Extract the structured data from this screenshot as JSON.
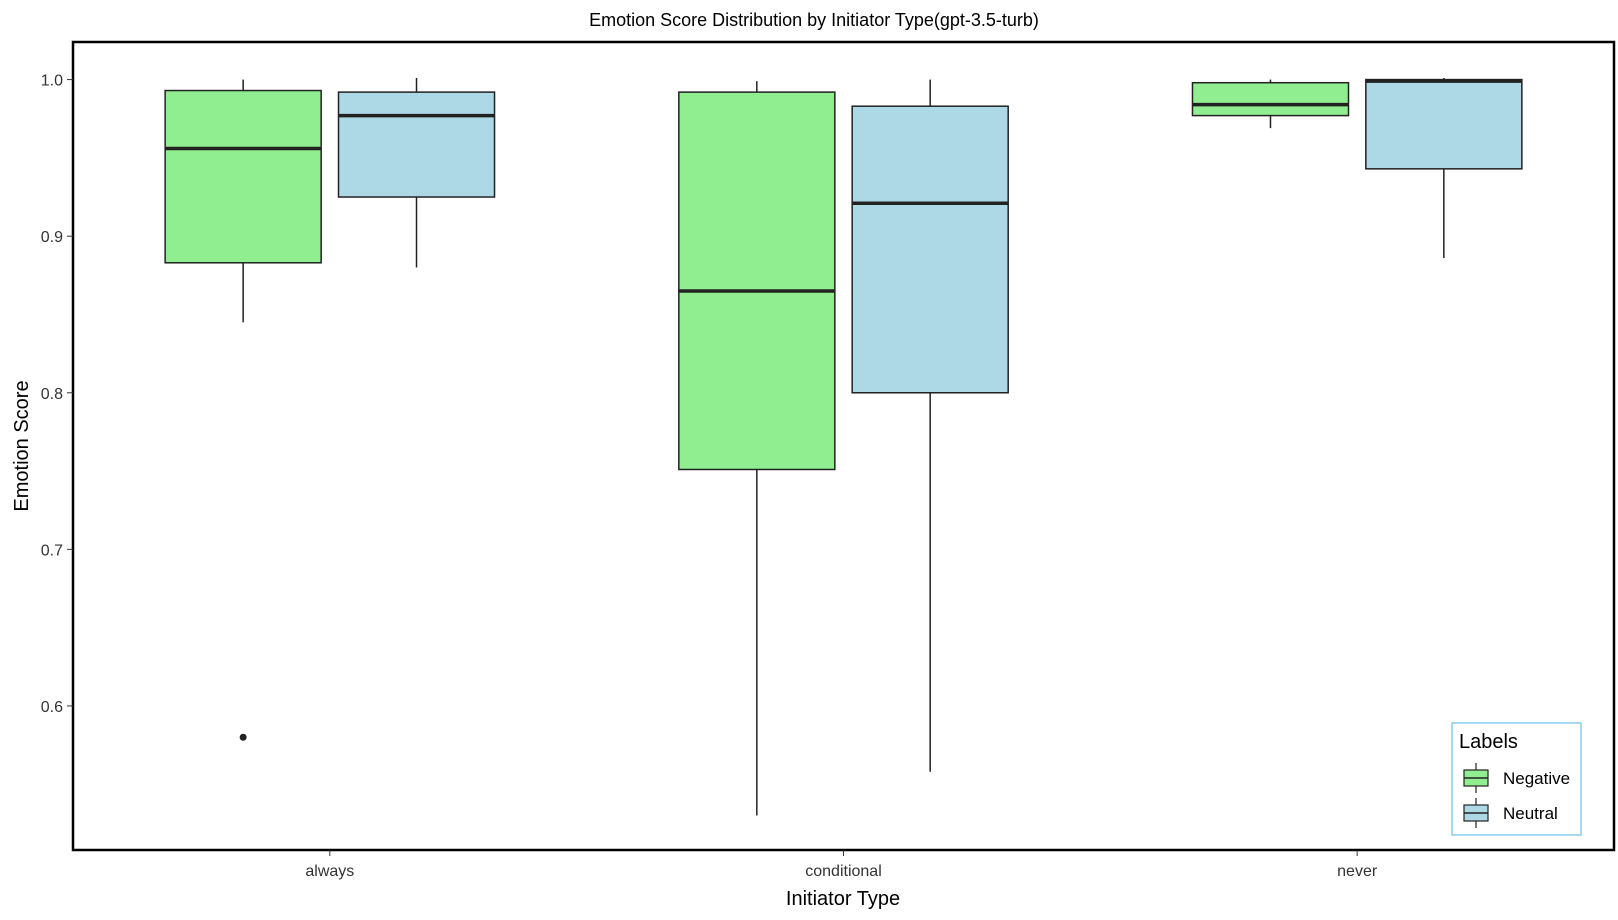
{
  "chart_data": {
    "type": "boxplot",
    "title": "Emotion Score Distribution by Initiator Type(gpt-3.5-turb)",
    "xlabel": "Initiator Type",
    "ylabel": "Emotion Score",
    "categories": [
      "always",
      "conditional",
      "never"
    ],
    "ylim": [
      0.508,
      1.024
    ],
    "yticks": [
      {
        "value": 0.6,
        "label": "0.6"
      },
      {
        "value": 0.7,
        "label": "0.7"
      },
      {
        "value": 0.8,
        "label": "0.8"
      },
      {
        "value": 0.9,
        "label": "0.9"
      },
      {
        "value": 1.0,
        "label": "1.0"
      }
    ],
    "grid": false,
    "legend": {
      "title": "Labels",
      "position": "bottom-right"
    },
    "series": [
      {
        "name": "Negative",
        "color": "#90ee90",
        "boxes": [
          {
            "category": "always",
            "whisker_low": 0.845,
            "q1": 0.883,
            "median": 0.956,
            "q3": 0.993,
            "whisker_high": 1.0,
            "outliers": [
              0.58
            ]
          },
          {
            "category": "conditional",
            "whisker_low": 0.53,
            "q1": 0.751,
            "median": 0.865,
            "q3": 0.992,
            "whisker_high": 0.999,
            "outliers": []
          },
          {
            "category": "never",
            "whisker_low": 0.969,
            "q1": 0.977,
            "median": 0.984,
            "q3": 0.998,
            "whisker_high": 1.0,
            "outliers": []
          }
        ]
      },
      {
        "name": "Neutral",
        "color": "#add8e6",
        "boxes": [
          {
            "category": "always",
            "whisker_low": 0.88,
            "q1": 0.925,
            "median": 0.977,
            "q3": 0.992,
            "whisker_high": 1.001,
            "outliers": []
          },
          {
            "category": "conditional",
            "whisker_low": 0.558,
            "q1": 0.8,
            "median": 0.921,
            "q3": 0.983,
            "whisker_high": 1.0,
            "outliers": []
          },
          {
            "category": "never",
            "whisker_low": 0.886,
            "q1": 0.943,
            "median": 0.999,
            "q3": 1.0,
            "whisker_high": 1.001,
            "outliers": []
          }
        ]
      }
    ]
  }
}
